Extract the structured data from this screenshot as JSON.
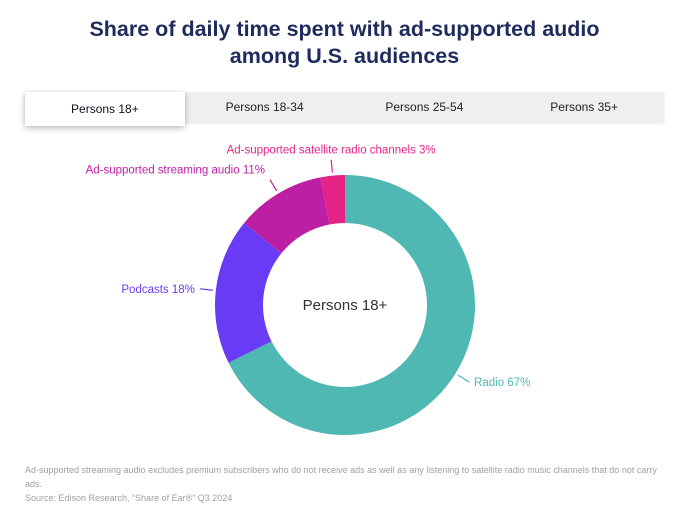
{
  "header": {
    "title": "Share of daily time spent with ad-supported audio among U.S. audiences"
  },
  "tabs": [
    {
      "label": "Persons 18+",
      "active": true
    },
    {
      "label": "Persons 18-34",
      "active": false
    },
    {
      "label": "Persons 25-54",
      "active": false
    },
    {
      "label": "Persons 35+",
      "active": false
    }
  ],
  "chart_data": {
    "type": "pie",
    "donut": true,
    "title": "Share of daily time spent with ad-supported audio among U.S. audiences",
    "center_label": "Persons 18+",
    "start_angle_deg": 0,
    "direction": "clockwise",
    "legend_position": "callout-labels",
    "segments": [
      {
        "label": "Radio",
        "value": 67,
        "display": "Radio 67%",
        "color": "#4fb8b3"
      },
      {
        "label": "Podcasts",
        "value": 18,
        "display": "Podcasts 18%",
        "color": "#6a3bf4"
      },
      {
        "label": "Ad-supported streaming audio",
        "value": 11,
        "display": "Ad-supported streaming audio 11%",
        "color": "#bd1fa4"
      },
      {
        "label": "Ad-supported satellite radio channels",
        "value": 3,
        "display": "Ad-supported satellite radio channels 3%",
        "color": "#e62488"
      }
    ]
  },
  "footer": {
    "footnote": "Ad-supported streaming audio excludes premium subscribers who do not receive ads as well as any listening to satellite radio music channels that do not carry ads.",
    "source": "Source: Edison Research, “Share of Ear®” Q3 2024"
  }
}
